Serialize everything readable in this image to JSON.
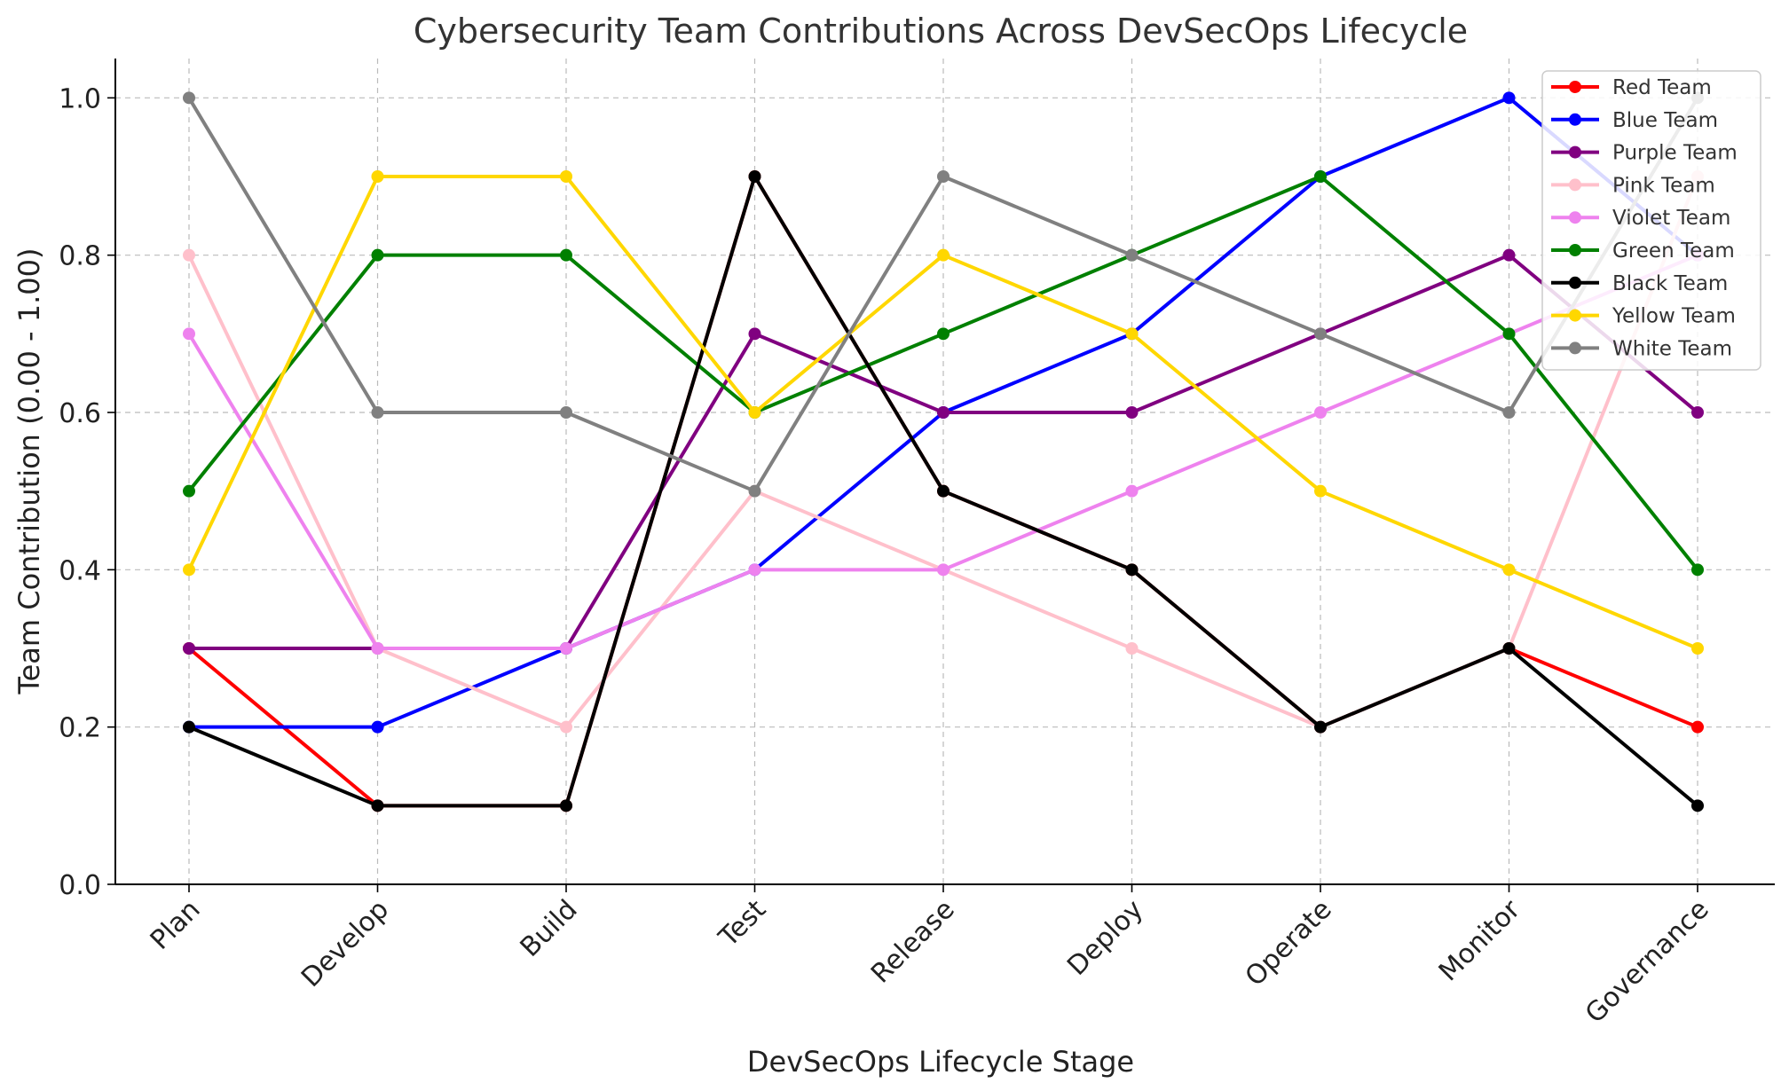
{
  "chart_data": {
    "type": "line",
    "title": "Cybersecurity Team Contributions Across DevSecOps Lifecycle",
    "xlabel": "DevSecOps Lifecycle Stage",
    "ylabel": "Team Contribution (0.00 - 1.00)",
    "ylim": [
      0,
      1.05
    ],
    "yticks": [
      "0.0",
      "0.2",
      "0.4",
      "0.6",
      "0.8",
      "1.0"
    ],
    "grid": true,
    "legend_position": "top-right",
    "categories": [
      "Plan",
      "Develop",
      "Build",
      "Test",
      "Release",
      "Deploy",
      "Operate",
      "Monitor",
      "Governance"
    ],
    "series": [
      {
        "name": "Red Team",
        "color": "#ff0000",
        "values": [
          0.3,
          0.1,
          0.1,
          0.9,
          0.5,
          0.4,
          0.2,
          0.3,
          0.2
        ]
      },
      {
        "name": "Blue Team",
        "color": "#0000ff",
        "values": [
          0.2,
          0.2,
          0.3,
          0.4,
          0.6,
          0.7,
          0.9,
          1.0,
          0.8
        ]
      },
      {
        "name": "Purple Team",
        "color": "#800080",
        "values": [
          0.3,
          0.3,
          0.3,
          0.7,
          0.6,
          0.6,
          0.7,
          0.8,
          0.6
        ]
      },
      {
        "name": "Pink Team",
        "color": "#ffc0cb",
        "values": [
          0.8,
          0.3,
          0.2,
          0.5,
          0.4,
          0.3,
          0.2,
          0.3,
          0.9
        ]
      },
      {
        "name": "Violet Team",
        "color": "#ee82ee",
        "values": [
          0.7,
          0.3,
          0.3,
          0.4,
          0.4,
          0.5,
          0.6,
          0.7,
          0.8
        ]
      },
      {
        "name": "Green Team",
        "color": "#008000",
        "values": [
          0.5,
          0.8,
          0.8,
          0.6,
          0.7,
          0.8,
          0.9,
          0.7,
          0.4
        ]
      },
      {
        "name": "Black Team",
        "color": "#000000",
        "values": [
          0.2,
          0.1,
          0.1,
          0.9,
          0.5,
          0.4,
          0.2,
          0.3,
          0.1
        ]
      },
      {
        "name": "Yellow Team",
        "color": "#ffd700",
        "values": [
          0.4,
          0.9,
          0.9,
          0.6,
          0.8,
          0.7,
          0.5,
          0.4,
          0.3
        ]
      },
      {
        "name": "White Team",
        "color": "#808080",
        "values": [
          1.0,
          0.6,
          0.6,
          0.5,
          0.9,
          0.8,
          0.7,
          0.6,
          1.0
        ]
      }
    ]
  }
}
